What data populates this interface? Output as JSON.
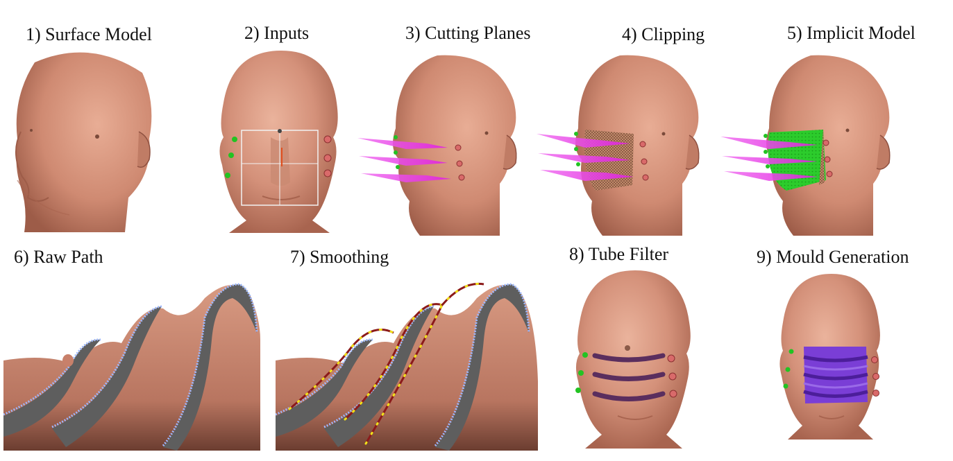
{
  "panels": [
    {
      "id": "p1",
      "label": "1) Surface Model"
    },
    {
      "id": "p2",
      "label": "2) Inputs"
    },
    {
      "id": "p3",
      "label": "3) Cutting Planes"
    },
    {
      "id": "p4",
      "label": "4) Clipping"
    },
    {
      "id": "p5",
      "label": "5) Implicit Model"
    },
    {
      "id": "p6",
      "label": "6) Raw Path"
    },
    {
      "id": "p7",
      "label": "7) Smoothing"
    },
    {
      "id": "p8",
      "label": "8) Tube Filter"
    },
    {
      "id": "p9",
      "label": "9) Mould Generation"
    }
  ],
  "colors": {
    "skin": "#d4917a",
    "skin_dark": "#a8644f",
    "skin_light": "#e8b09a",
    "green_marker": "#22c322",
    "red_marker": "#d96a6a",
    "plane": "#e040e0",
    "implicit": "#28c828",
    "tube": "#5a2e5e",
    "mould": "#7a3ed6",
    "path_raw": "#9db8ff",
    "path_smooth": "#8b1a1a",
    "path_point": "#f2e21a",
    "section": "#5e5e5e"
  }
}
